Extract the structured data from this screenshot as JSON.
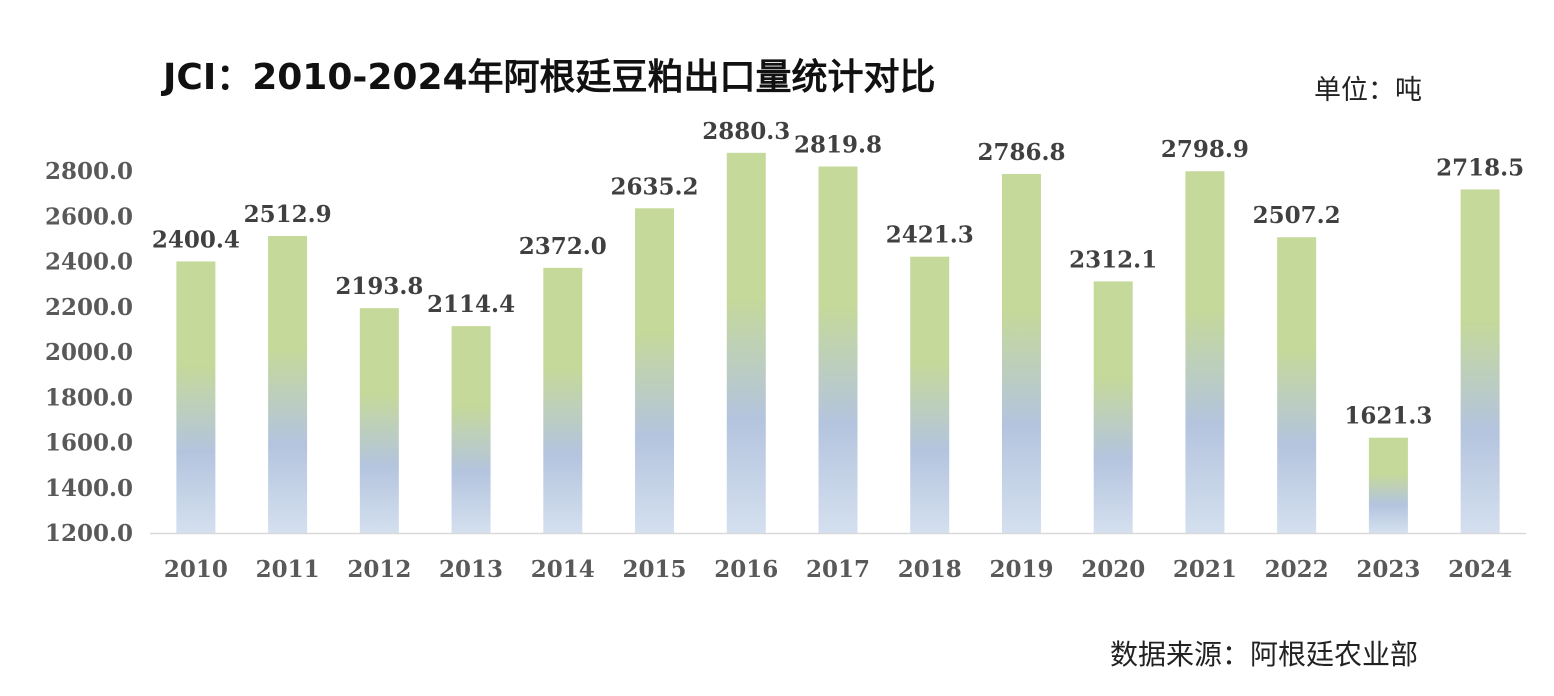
{
  "title": "JCI：2010-2024年阿根廷豆粕出口量统计对比",
  "unit_label": "单位：吨",
  "source_label": "数据来源：阿根廷农业部",
  "colors": {
    "bar_top": "#c5d99a",
    "bar_mid": "#b4c4de",
    "bar_bottom": "#d4e0ef",
    "axis": "#d9d9d9"
  },
  "chart_data": {
    "type": "bar",
    "title": "JCI：2010-2024年阿根廷豆粕出口量统计对比",
    "xlabel": "",
    "ylabel": "",
    "categories": [
      "2010",
      "2011",
      "2012",
      "2013",
      "2014",
      "2015",
      "2016",
      "2017",
      "2018",
      "2019",
      "2020",
      "2021",
      "2022",
      "2023",
      "2024"
    ],
    "values": [
      2400.4,
      2512.9,
      2193.8,
      2114.4,
      2372.0,
      2635.2,
      2880.3,
      2819.8,
      2421.3,
      2786.8,
      2312.1,
      2798.9,
      2507.2,
      1621.3,
      2718.5
    ],
    "value_labels": [
      "2400.4",
      "2512.9",
      "2193.8",
      "2114.4",
      "2372.0",
      "2635.2",
      "2880.3",
      "2819.8",
      "2421.3",
      "2786.8",
      "2312.1",
      "2798.9",
      "2507.2",
      "1621.3",
      "2718.5"
    ],
    "ylim": [
      1200,
      2800
    ],
    "y_ticks": [
      1200,
      1400,
      1600,
      1800,
      2000,
      2200,
      2400,
      2600,
      2800
    ],
    "y_tick_labels": [
      "1200.0",
      "1400.0",
      "1600.0",
      "1800.0",
      "2000.0",
      "2200.0",
      "2400.0",
      "2600.0",
      "2800.0"
    ],
    "grid": false,
    "legend": "none"
  }
}
